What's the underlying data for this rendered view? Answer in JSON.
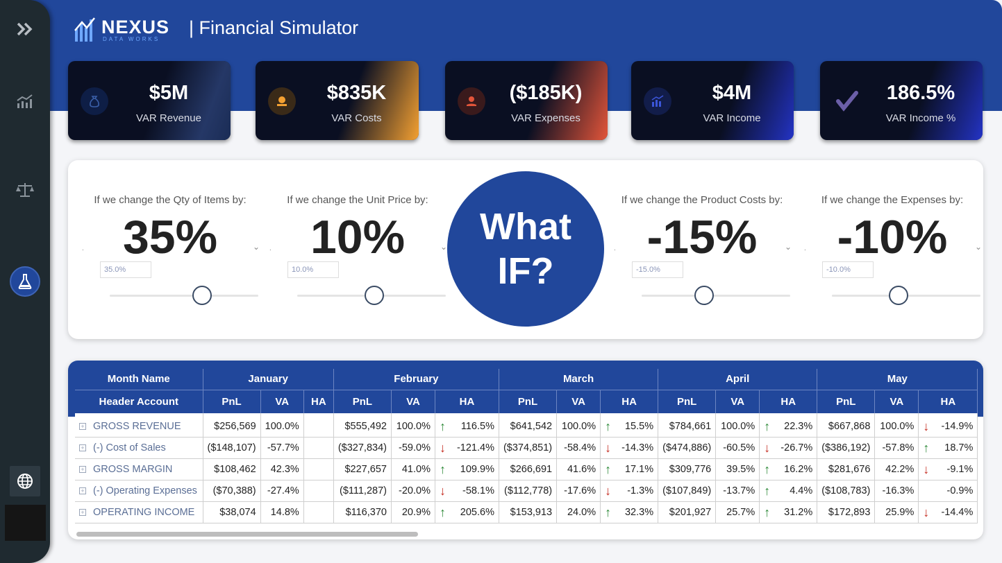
{
  "app": {
    "logo_name": "NEXUS",
    "logo_sub": "DATA WORKS",
    "title": "| Financial Simulator"
  },
  "sidebar": {
    "items": [
      {
        "icon": "chevron-double-right-icon"
      },
      {
        "icon": "chart-bar-trend-icon"
      },
      {
        "icon": "balance-scale-icon"
      },
      {
        "icon": "flask-icon",
        "active": true
      },
      {
        "icon": "globe-icon"
      }
    ]
  },
  "kpis": [
    {
      "value": "$5M",
      "label": "VAR Revenue",
      "icon": "money-bag-icon",
      "accent": "#0d1f4d"
    },
    {
      "value": "$835K",
      "label": "VAR Costs",
      "icon": "coin-hand-icon",
      "accent": "#f3a032"
    },
    {
      "value": "($185K)",
      "label": "VAR Expenses",
      "icon": "hand-coin-icon",
      "accent": "#e2553a"
    },
    {
      "value": "$4M",
      "label": "VAR Income",
      "icon": "bar-chart-icon",
      "accent": "#2434c8"
    },
    {
      "value": "186.5%",
      "label": "VAR Income %",
      "icon": "checkmark-icon",
      "accent": "#2434c8"
    }
  ],
  "params": [
    {
      "label": "If we change the Qty of Items by:",
      "value": "35%",
      "input": "35.0%",
      "fraction": 0.62
    },
    {
      "label": "If we change the Unit Price by:",
      "value": "10%",
      "input": "10.0%",
      "fraction": 0.52
    },
    {
      "label": "If we change the Product Costs by:",
      "value": "-15%",
      "input": "-15.0%",
      "fraction": 0.42
    },
    {
      "label": "If we change the Expenses by:",
      "value": "-10%",
      "input": "-10.0%",
      "fraction": 0.45
    }
  ],
  "whatif": {
    "line1": "What",
    "line2": "IF?"
  },
  "table": {
    "header_month": "Month Name",
    "header_account": "Header Account",
    "sub_cols": [
      "PnL",
      "VA",
      "HA"
    ],
    "months": [
      "January",
      "February",
      "March",
      "April",
      "May"
    ],
    "rows": [
      {
        "account": "GROSS REVENUE",
        "cells": [
          {
            "pnl": "$256,569",
            "va": "100.0%",
            "ha": "",
            "dir": ""
          },
          {
            "pnl": "$555,492",
            "va": "100.0%",
            "ha": "116.5%",
            "dir": "up"
          },
          {
            "pnl": "$641,542",
            "va": "100.0%",
            "ha": "15.5%",
            "dir": "up"
          },
          {
            "pnl": "$784,661",
            "va": "100.0%",
            "ha": "22.3%",
            "dir": "up"
          },
          {
            "pnl": "$667,868",
            "va": "100.0%",
            "ha": "-14.9%",
            "dir": "down"
          }
        ]
      },
      {
        "account": "(-) Cost of Sales",
        "cells": [
          {
            "pnl": "($148,107)",
            "va": "-57.7%",
            "ha": "",
            "dir": ""
          },
          {
            "pnl": "($327,834)",
            "va": "-59.0%",
            "ha": "-121.4%",
            "dir": "down"
          },
          {
            "pnl": "($374,851)",
            "va": "-58.4%",
            "ha": "-14.3%",
            "dir": "down"
          },
          {
            "pnl": "($474,886)",
            "va": "-60.5%",
            "ha": "-26.7%",
            "dir": "down"
          },
          {
            "pnl": "($386,192)",
            "va": "-57.8%",
            "ha": "18.7%",
            "dir": "up"
          }
        ]
      },
      {
        "account": "GROSS MARGIN",
        "cells": [
          {
            "pnl": "$108,462",
            "va": "42.3%",
            "ha": "",
            "dir": ""
          },
          {
            "pnl": "$227,657",
            "va": "41.0%",
            "ha": "109.9%",
            "dir": "up"
          },
          {
            "pnl": "$266,691",
            "va": "41.6%",
            "ha": "17.1%",
            "dir": "up"
          },
          {
            "pnl": "$309,776",
            "va": "39.5%",
            "ha": "16.2%",
            "dir": "up"
          },
          {
            "pnl": "$281,676",
            "va": "42.2%",
            "ha": "-9.1%",
            "dir": "down"
          }
        ]
      },
      {
        "account": "(-) Operating Expenses",
        "cells": [
          {
            "pnl": "($70,388)",
            "va": "-27.4%",
            "ha": "",
            "dir": ""
          },
          {
            "pnl": "($111,287)",
            "va": "-20.0%",
            "ha": "-58.1%",
            "dir": "down"
          },
          {
            "pnl": "($112,778)",
            "va": "-17.6%",
            "ha": "-1.3%",
            "dir": "down"
          },
          {
            "pnl": "($107,849)",
            "va": "-13.7%",
            "ha": "4.4%",
            "dir": "up"
          },
          {
            "pnl": "($108,783)",
            "va": "-16.3%",
            "ha": "-0.9%",
            "dir": ""
          }
        ]
      },
      {
        "account": "OPERATING INCOME",
        "cells": [
          {
            "pnl": "$38,074",
            "va": "14.8%",
            "ha": "",
            "dir": ""
          },
          {
            "pnl": "$116,370",
            "va": "20.9%",
            "ha": "205.6%",
            "dir": "up"
          },
          {
            "pnl": "$153,913",
            "va": "24.0%",
            "ha": "32.3%",
            "dir": "up"
          },
          {
            "pnl": "$201,927",
            "va": "25.7%",
            "ha": "31.2%",
            "dir": "up"
          },
          {
            "pnl": "$172,893",
            "va": "25.9%",
            "ha": "-14.4%",
            "dir": "down"
          }
        ]
      }
    ]
  }
}
